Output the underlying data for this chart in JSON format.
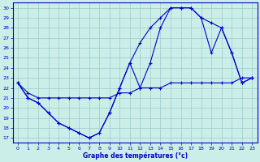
{
  "title": "Graphe des températures (°c)",
  "bg_color": "#cceee8",
  "line_color": "#0000cc",
  "grid_color": "#99cccc",
  "xlim": [
    -0.5,
    23.5
  ],
  "ylim": [
    16.5,
    30.5
  ],
  "yticks": [
    17,
    18,
    19,
    20,
    21,
    22,
    23,
    24,
    25,
    26,
    27,
    28,
    29,
    30
  ],
  "xticks": [
    0,
    1,
    2,
    3,
    4,
    5,
    6,
    7,
    8,
    9,
    10,
    11,
    12,
    13,
    14,
    15,
    16,
    17,
    18,
    19,
    20,
    21,
    22,
    23
  ],
  "series1_x": [
    0,
    1,
    2,
    3,
    4,
    5,
    6,
    7,
    8,
    9,
    10,
    11,
    12,
    13,
    14,
    15,
    16,
    17,
    18,
    19,
    20,
    21,
    22,
    23
  ],
  "series1_y": [
    22.5,
    21.5,
    21.0,
    21.0,
    21.0,
    21.0,
    21.0,
    21.0,
    21.0,
    21.0,
    21.5,
    21.5,
    22.0,
    22.0,
    22.0,
    22.5,
    22.5,
    22.5,
    22.5,
    22.5,
    22.5,
    22.5,
    23.0,
    23.0
  ],
  "series2_x": [
    0,
    1,
    2,
    3,
    4,
    5,
    6,
    7,
    8,
    9,
    10,
    11,
    12,
    13,
    14,
    15,
    16,
    17,
    18,
    19,
    20,
    21,
    22,
    23
  ],
  "series2_y": [
    22.5,
    21.0,
    20.5,
    19.5,
    18.5,
    18.0,
    17.5,
    17.0,
    17.5,
    19.5,
    22.0,
    24.5,
    22.0,
    24.5,
    28.0,
    30.0,
    30.0,
    30.0,
    29.0,
    28.5,
    28.0,
    25.5,
    22.5,
    23.0
  ],
  "series3_x": [
    0,
    1,
    2,
    3,
    4,
    5,
    6,
    7,
    8,
    9,
    10,
    11,
    12,
    13,
    14,
    15,
    16,
    17,
    18,
    19,
    20,
    21,
    22,
    23
  ],
  "series3_y": [
    22.5,
    21.0,
    20.5,
    19.5,
    18.5,
    18.0,
    17.5,
    17.0,
    17.5,
    19.5,
    22.0,
    24.5,
    26.5,
    28.0,
    29.0,
    30.0,
    30.0,
    30.0,
    29.0,
    25.5,
    28.0,
    25.5,
    22.5,
    23.0
  ]
}
